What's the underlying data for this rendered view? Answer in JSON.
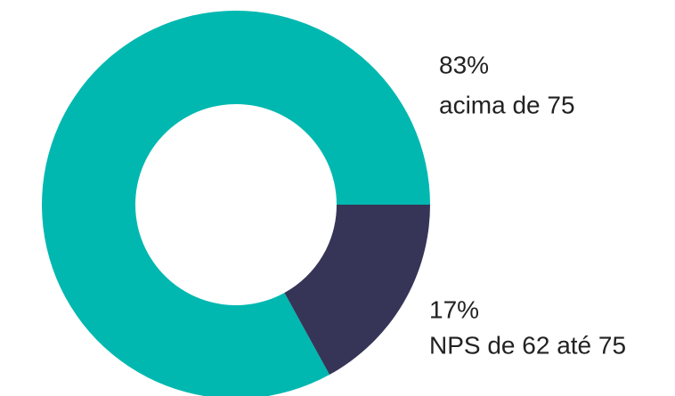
{
  "chart_data": {
    "type": "donut",
    "categories": [
      "acima de 75",
      "NPS de 62 até 75"
    ],
    "values": [
      83,
      17
    ],
    "value_labels": [
      "83%",
      "17%"
    ],
    "colors": [
      "#00b8b0",
      "#363558"
    ]
  }
}
